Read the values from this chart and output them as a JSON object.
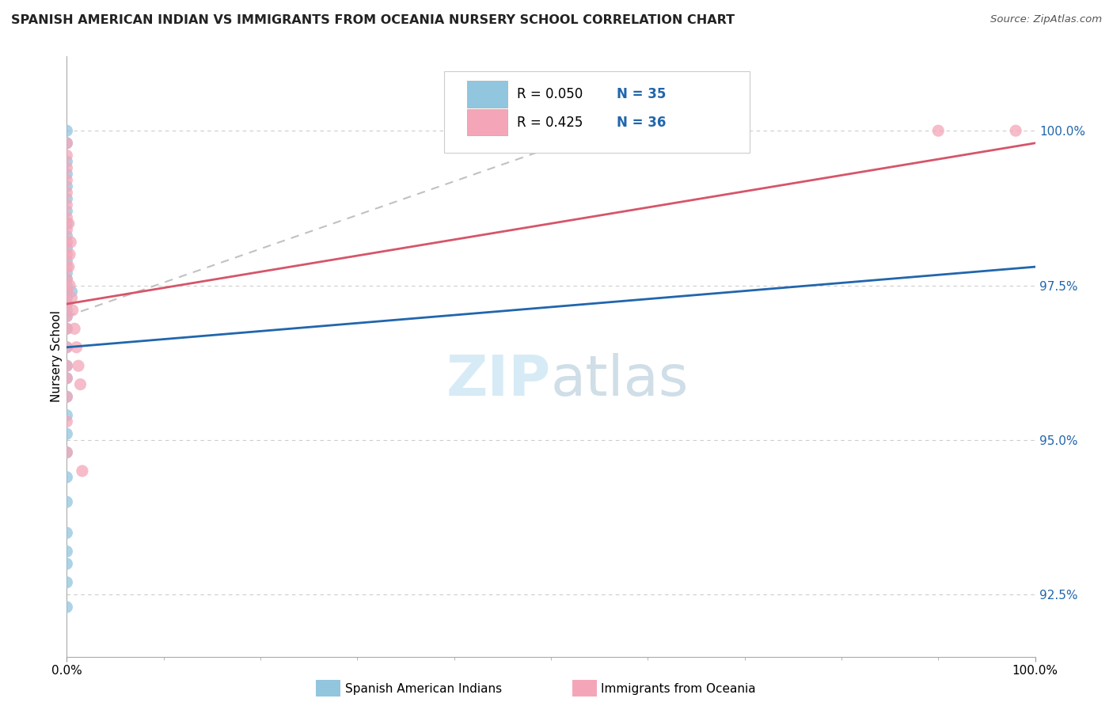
{
  "title": "SPANISH AMERICAN INDIAN VS IMMIGRANTS FROM OCEANIA NURSERY SCHOOL CORRELATION CHART",
  "source": "Source: ZipAtlas.com",
  "ylabel": "Nursery School",
  "legend_r1": "R = 0.050",
  "legend_n1": "N = 35",
  "legend_r2": "R = 0.425",
  "legend_n2": "N = 36",
  "color_blue": "#92c5de",
  "color_pink": "#f4a6b8",
  "color_blue_line": "#2166ac",
  "color_pink_line": "#d6556a",
  "color_gray_dashed": "#bbbbbb",
  "blue_dots_x": [
    0.0,
    0.0,
    0.0,
    0.0,
    0.0,
    0.0,
    0.0,
    0.0,
    0.0,
    0.0,
    0.0,
    0.0,
    0.0,
    0.0,
    0.0,
    0.0,
    0.0,
    0.0,
    0.0,
    0.0,
    0.0,
    0.0,
    0.0,
    0.0,
    0.0,
    0.0,
    0.0,
    0.0,
    0.0,
    0.0,
    0.0,
    0.0,
    0.0,
    0.0,
    0.5
  ],
  "blue_dots_y": [
    100.0,
    99.8,
    99.5,
    99.3,
    99.1,
    98.9,
    98.7,
    98.5,
    98.3,
    98.1,
    97.9,
    97.7,
    97.6,
    97.5,
    97.4,
    97.3,
    97.2,
    97.1,
    97.0,
    96.8,
    96.5,
    96.2,
    96.0,
    95.7,
    95.4,
    95.1,
    94.8,
    94.4,
    94.0,
    93.5,
    93.2,
    93.0,
    92.7,
    92.3,
    97.4
  ],
  "pink_dots_x": [
    0.0,
    0.0,
    0.0,
    0.0,
    0.0,
    0.0,
    0.0,
    0.0,
    0.0,
    0.0,
    0.0,
    0.0,
    0.0,
    0.0,
    0.0,
    0.0,
    0.0,
    0.0,
    0.0,
    0.0,
    0.0,
    0.0,
    0.2,
    0.2,
    0.3,
    0.3,
    0.4,
    0.5,
    0.6,
    0.8,
    1.0,
    1.2,
    1.4,
    1.6,
    90.0,
    98.0
  ],
  "pink_dots_y": [
    99.8,
    99.6,
    99.4,
    99.2,
    99.0,
    98.8,
    98.6,
    98.4,
    98.2,
    98.0,
    97.8,
    97.6,
    97.4,
    97.2,
    97.0,
    96.8,
    96.5,
    96.2,
    96.0,
    95.7,
    95.3,
    94.8,
    98.5,
    97.8,
    98.0,
    97.5,
    98.2,
    97.3,
    97.1,
    96.8,
    96.5,
    96.2,
    95.9,
    94.5,
    100.0,
    100.0
  ],
  "xlim": [
    0,
    100
  ],
  "ylim": [
    91.5,
    101.2
  ],
  "yticks": [
    92.5,
    95.0,
    97.5,
    100.0
  ],
  "ytick_labels": [
    "92.5%",
    "95.0%",
    "97.5%",
    "100.0%"
  ],
  "blue_line_x0": 0,
  "blue_line_x1": 100,
  "blue_line_y0": 96.5,
  "blue_line_y1": 97.8,
  "pink_line_x0": 0,
  "pink_line_x1": 100,
  "pink_line_y0": 97.2,
  "pink_line_y1": 99.8,
  "gray_line_x0": 0,
  "gray_line_x1": 55,
  "gray_line_y0": 97.0,
  "gray_line_y1": 100.0
}
